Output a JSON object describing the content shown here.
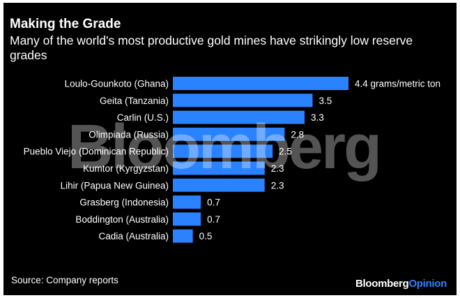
{
  "header": {
    "title": "Making the Grade",
    "subtitle": "Many of the world's most productive gold mines have strikingly low reserve grades"
  },
  "watermark": "Bloomberg",
  "footer": {
    "source": "Source: Company reports",
    "brand_primary": "Bloomberg",
    "brand_secondary": "Opinion"
  },
  "colors": {
    "background": "#000000",
    "bar": "#2b82ff",
    "text": "#ffffff",
    "brand_accent": "#2b82ff"
  },
  "chart_data": {
    "type": "bar",
    "orientation": "horizontal",
    "title": "Making the Grade",
    "subtitle": "Many of the world's most productive gold mines have strikingly low reserve grades",
    "categories": [
      "Loulo-Gounkoto (Ghana)",
      "Geita (Tanzania)",
      "Carlin (U.S.)",
      "Olimpiada (Russia)",
      "Pueblo Viejo (Dominican Republic)",
      "Kumtor (Kyrgyzstan)",
      "Lihir (Papua New Guinea)",
      "Grasberg (Indonesia)",
      "Boddington (Australia)",
      "Cadia (Australia)"
    ],
    "values": [
      4.4,
      3.5,
      3.3,
      2.8,
      2.5,
      2.3,
      2.3,
      0.7,
      0.7,
      0.5
    ],
    "value_labels": [
      "4.4 grams/metric ton",
      "3.5",
      "3.3",
      "2.8",
      "2.5",
      "2.3",
      "2.3",
      "0.7",
      "0.7",
      "0.5"
    ],
    "xlim": [
      0,
      4.4
    ],
    "grid": false,
    "legend": "none"
  }
}
